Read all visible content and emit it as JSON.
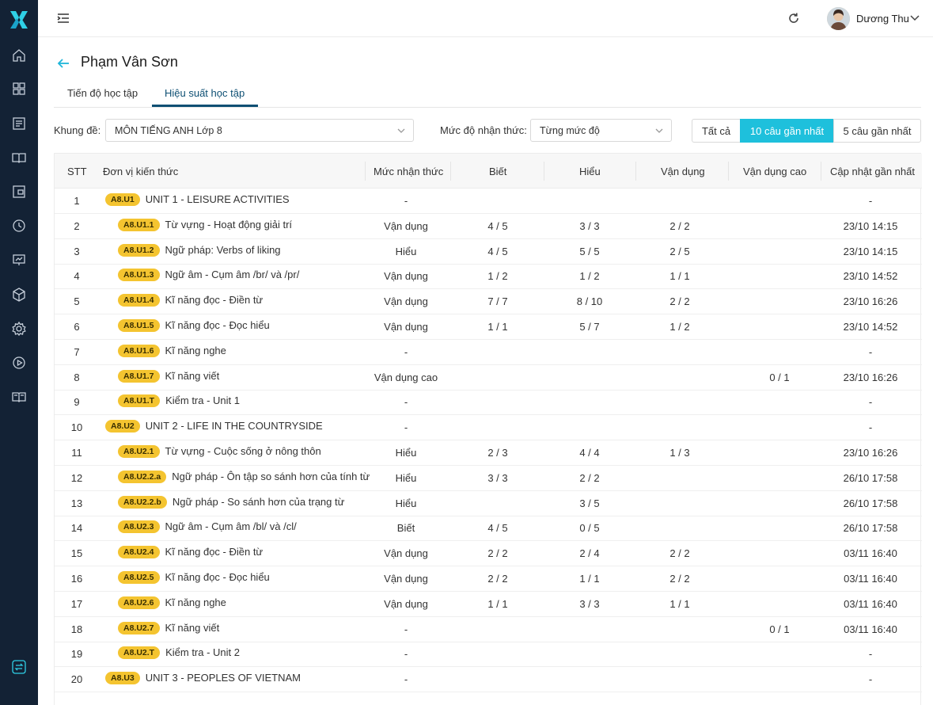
{
  "app": {
    "user_name": "Dương Thu",
    "accent_color": "#1ec0dc",
    "sidebar_color": "#132235",
    "sidebar_icons": [
      "home-icon",
      "grid-icon",
      "list-icon",
      "book-icon",
      "tablet-icon",
      "clock-icon",
      "presentation-icon",
      "cube-icon",
      "settings-icon",
      "play-icon",
      "book-open-icon",
      "swap-icon"
    ]
  },
  "page": {
    "title": "Phạm Vân Sơn",
    "tabs": [
      {
        "label": "Tiến độ học tập",
        "active": false
      },
      {
        "label": "Hiệu suất học tập",
        "active": true
      }
    ]
  },
  "filters": {
    "framework_label": "Khung đề:",
    "framework_value": "MÔN TIẾNG ANH Lớp 8",
    "level_label": "Mức độ nhận thức:",
    "level_value": "Từng mức độ",
    "segments": [
      "Tất cả",
      "10 câu gần nhất",
      "5 câu gần nhất"
    ],
    "active_segment": "10 câu gần nhất"
  },
  "table": {
    "headers": [
      "STT",
      "Đơn vị kiến thức",
      "Mức nhận thức",
      "Biết",
      "Hiểu",
      "Vận dụng",
      "Vận dụng cao",
      "Cập nhật gần nhất"
    ],
    "rows": [
      {
        "stt": "1",
        "code": "A8.U1",
        "name": "UNIT 1 - LEISURE ACTIVITIES",
        "level": "unit",
        "muc": "-",
        "biet": "",
        "hieu": "",
        "vd": "",
        "vdc": "",
        "cap": "-"
      },
      {
        "stt": "2",
        "code": "A8.U1.1",
        "name": "Từ vựng - Hoạt động giải trí",
        "level": "sub",
        "muc": "Vận dụng",
        "biet": "4 / 5",
        "hieu": "3 / 3",
        "vd": "2 / 2",
        "vdc": "",
        "cap": "23/10 14:15"
      },
      {
        "stt": "3",
        "code": "A8.U1.2",
        "name": "Ngữ pháp: Verbs of liking",
        "level": "sub",
        "muc": "Hiểu",
        "biet": "4 / 5",
        "hieu": "5 / 5",
        "vd": "2 / 5",
        "vdc": "",
        "cap": "23/10 14:15"
      },
      {
        "stt": "4",
        "code": "A8.U1.3",
        "name": "Ngữ âm - Cụm âm /br/ và /pr/",
        "level": "sub",
        "muc": "Vận dụng",
        "biet": "1 / 2",
        "hieu": "1 / 2",
        "vd": "1 / 1",
        "vdc": "",
        "cap": "23/10 14:52"
      },
      {
        "stt": "5",
        "code": "A8.U1.4",
        "name": "Kĩ năng đọc - Điền từ",
        "level": "sub",
        "muc": "Vận dụng",
        "biet": "7 / 7",
        "hieu": "8 / 10",
        "vd": "2 / 2",
        "vdc": "",
        "cap": "23/10 16:26"
      },
      {
        "stt": "6",
        "code": "A8.U1.5",
        "name": "Kĩ năng đọc - Đọc hiểu",
        "level": "sub",
        "muc": "Vận dụng",
        "biet": "1 / 1",
        "hieu": "5 / 7",
        "vd": "1 / 2",
        "vdc": "",
        "cap": "23/10 14:52"
      },
      {
        "stt": "7",
        "code": "A8.U1.6",
        "name": "Kĩ năng nghe",
        "level": "sub",
        "muc": "-",
        "biet": "",
        "hieu": "",
        "vd": "",
        "vdc": "",
        "cap": "-"
      },
      {
        "stt": "8",
        "code": "A8.U1.7",
        "name": "Kĩ năng viết",
        "level": "sub",
        "muc": "Vận dụng cao",
        "biet": "",
        "hieu": "",
        "vd": "",
        "vdc": "0 / 1",
        "cap": "23/10 16:26"
      },
      {
        "stt": "9",
        "code": "A8.U1.T",
        "name": "Kiểm tra - Unit 1",
        "level": "sub",
        "muc": "-",
        "biet": "",
        "hieu": "",
        "vd": "",
        "vdc": "",
        "cap": "-"
      },
      {
        "stt": "10",
        "code": "A8.U2",
        "name": "UNIT 2 - LIFE IN THE COUNTRYSIDE",
        "level": "unit",
        "muc": "-",
        "biet": "",
        "hieu": "",
        "vd": "",
        "vdc": "",
        "cap": "-"
      },
      {
        "stt": "11",
        "code": "A8.U2.1",
        "name": "Từ vựng - Cuộc sống ở nông thôn",
        "level": "sub",
        "muc": "Hiểu",
        "biet": "2 / 3",
        "hieu": "4 / 4",
        "vd": "1 / 3",
        "vdc": "",
        "cap": "23/10 16:26"
      },
      {
        "stt": "12",
        "code": "A8.U2.2.a",
        "name": "Ngữ pháp - Ôn tập so sánh hơn của tính từ",
        "level": "sub",
        "muc": "Hiểu",
        "biet": "3 / 3",
        "hieu": "2 / 2",
        "vd": "",
        "vdc": "",
        "cap": "26/10 17:58"
      },
      {
        "stt": "13",
        "code": "A8.U2.2.b",
        "name": "Ngữ pháp - So sánh hơn của trạng từ",
        "level": "sub",
        "muc": "Hiểu",
        "biet": "",
        "hieu": "3 / 5",
        "vd": "",
        "vdc": "",
        "cap": "26/10 17:58"
      },
      {
        "stt": "14",
        "code": "A8.U2.3",
        "name": "Ngữ âm - Cụm âm /bl/ và /cl/",
        "level": "sub",
        "muc": "Biết",
        "biet": "4 / 5",
        "hieu": "0 / 5",
        "vd": "",
        "vdc": "",
        "cap": "26/10 17:58"
      },
      {
        "stt": "15",
        "code": "A8.U2.4",
        "name": "Kĩ năng đọc - Điền từ",
        "level": "sub",
        "muc": "Vận dụng",
        "biet": "2 / 2",
        "hieu": "2 / 4",
        "vd": "2 / 2",
        "vdc": "",
        "cap": "03/11 16:40"
      },
      {
        "stt": "16",
        "code": "A8.U2.5",
        "name": "Kĩ năng đọc - Đọc hiểu",
        "level": "sub",
        "muc": "Vận dụng",
        "biet": "2 / 2",
        "hieu": "1 / 1",
        "vd": "2 / 2",
        "vdc": "",
        "cap": "03/11 16:40"
      },
      {
        "stt": "17",
        "code": "A8.U2.6",
        "name": "Kĩ năng nghe",
        "level": "sub",
        "muc": "Vận dụng",
        "biet": "1 / 1",
        "hieu": "3 / 3",
        "vd": "1 / 1",
        "vdc": "",
        "cap": "03/11 16:40"
      },
      {
        "stt": "18",
        "code": "A8.U2.7",
        "name": "Kĩ năng viết",
        "level": "sub",
        "muc": "-",
        "biet": "",
        "hieu": "",
        "vd": "",
        "vdc": "0 / 1",
        "cap": "03/11 16:40"
      },
      {
        "stt": "19",
        "code": "A8.U2.T",
        "name": "Kiểm tra - Unit 2",
        "level": "sub",
        "muc": "-",
        "biet": "",
        "hieu": "",
        "vd": "",
        "vdc": "",
        "cap": "-"
      },
      {
        "stt": "20",
        "code": "A8.U3",
        "name": "UNIT 3 - PEOPLES OF VIETNAM",
        "level": "unit",
        "muc": "-",
        "biet": "",
        "hieu": "",
        "vd": "",
        "vdc": "",
        "cap": "-"
      }
    ]
  }
}
